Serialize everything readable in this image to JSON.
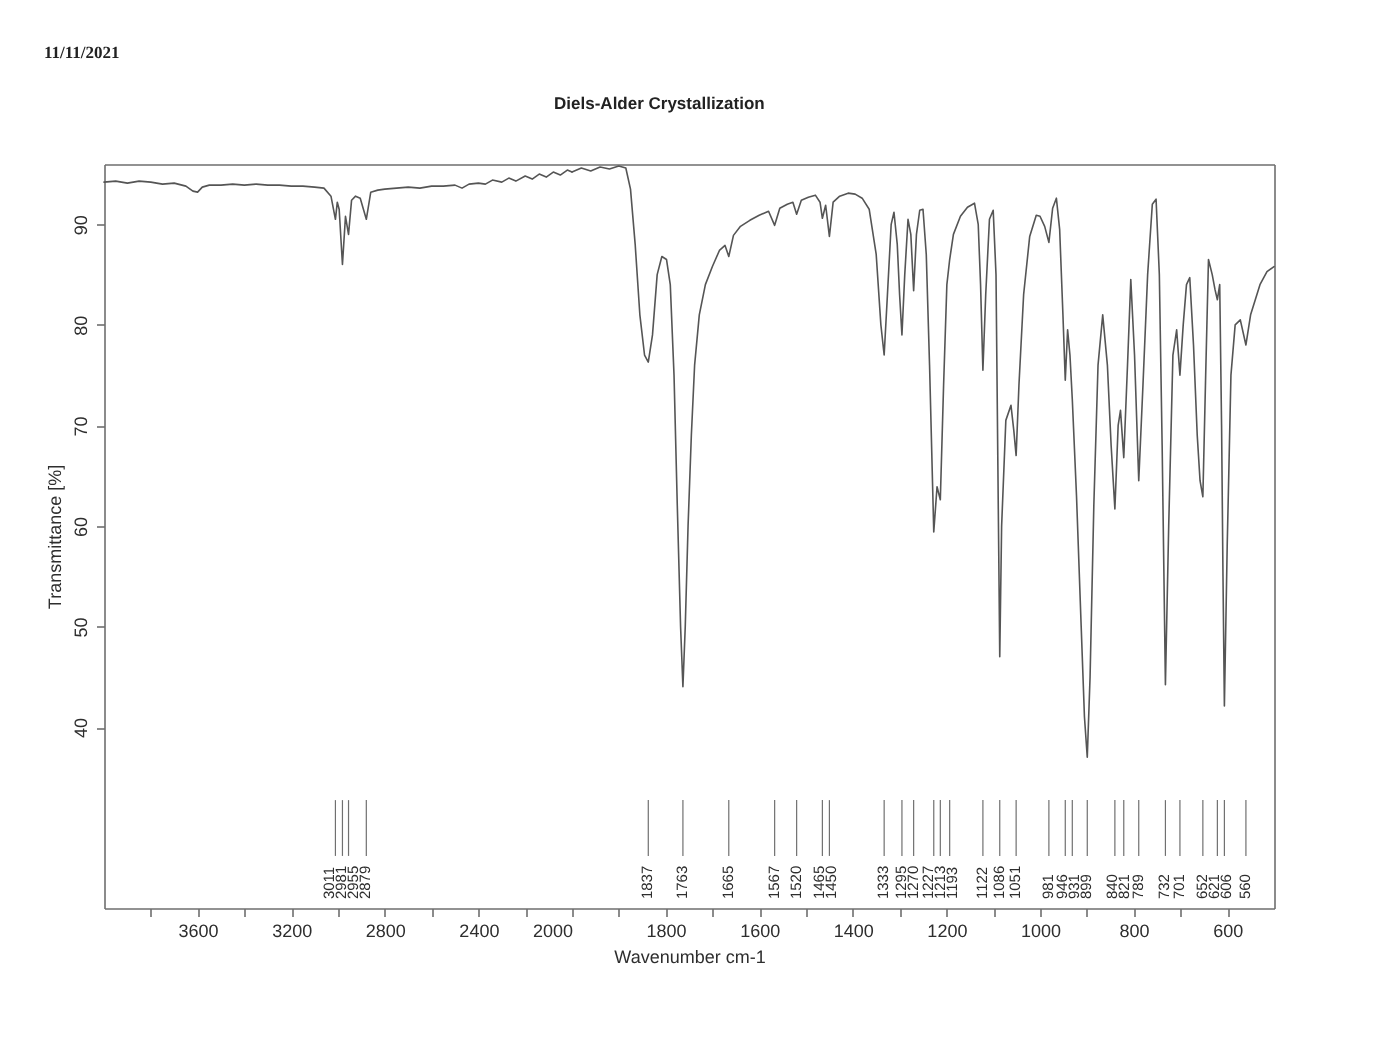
{
  "chart_data": [
    {
      "type": "line",
      "ylabel": "Transmittance [%]",
      "x": [
        4000,
        3950,
        3900,
        3850,
        3800,
        3750,
        3700,
        3650,
        3620,
        3600,
        3580,
        3550,
        3500,
        3450,
        3400,
        3350,
        3300,
        3250,
        3200,
        3150,
        3100,
        3060,
        3030,
        3011,
        3003,
        2995,
        2981,
        2968,
        2955,
        2942,
        2925,
        2905,
        2879,
        2860,
        2830,
        2800,
        2750,
        2700,
        2650,
        2600,
        2550,
        2500,
        2470,
        2440,
        2400,
        2370,
        2340,
        2300,
        2270,
        2240,
        2200,
        2170,
        2140,
        2110,
        2080,
        2050,
        2020,
        2000
      ],
      "series": [
        {
          "color": "#555555",
          "values": [
            94.2,
            94.3,
            94.1,
            94.3,
            94.2,
            94.0,
            94.1,
            93.8,
            93.3,
            93.2,
            93.7,
            93.9,
            93.9,
            94.0,
            93.9,
            94.0,
            93.9,
            93.9,
            93.8,
            93.8,
            93.7,
            93.6,
            92.8,
            90.5,
            92.2,
            91.5,
            86.0,
            90.8,
            89.0,
            92.4,
            92.8,
            92.6,
            90.5,
            93.2,
            93.4,
            93.5,
            93.6,
            93.7,
            93.6,
            93.8,
            93.8,
            93.9,
            93.6,
            94.0,
            94.1,
            94.0,
            94.4,
            94.2,
            94.6,
            94.3,
            94.8,
            94.5,
            95.0,
            94.7,
            95.2,
            94.9,
            95.4,
            95.2
          ]
        }
      ],
      "xlim": [
        4000,
        2000
      ],
      "xticks": [
        {
          "value": 3800,
          "label": null
        },
        3600,
        {
          "value": 3400,
          "label": null
        },
        3200,
        {
          "value": 3000,
          "label": null
        },
        2800,
        {
          "value": 2600,
          "label": null
        },
        2400,
        {
          "value": 2200,
          "label": null
        },
        2000
      ],
      "ylim": [
        22,
        96
      ],
      "yticks": [
        40,
        50,
        60,
        70,
        80,
        90
      ],
      "grid": false,
      "annotations": [
        "11/11/2021"
      ],
      "ref_lines": [
        {
          "axis": "x",
          "value": 3011,
          "label": "3011"
        },
        {
          "axis": "x",
          "value": 2981,
          "label": "2981"
        },
        {
          "axis": "x",
          "value": 2955,
          "label": "2955"
        },
        {
          "axis": "x",
          "value": 2879,
          "label": "2879"
        }
      ]
    },
    {
      "type": "line",
      "title": "Diels-Alder Crystallization",
      "xlabel": "Wavenumber cm-1",
      "x": [
        2000,
        1980,
        1960,
        1940,
        1920,
        1900,
        1885,
        1875,
        1865,
        1855,
        1845,
        1837,
        1828,
        1818,
        1808,
        1798,
        1790,
        1782,
        1775,
        1768,
        1763,
        1758,
        1752,
        1745,
        1738,
        1728,
        1715,
        1700,
        1685,
        1673,
        1665,
        1655,
        1640,
        1620,
        1600,
        1580,
        1567,
        1556,
        1540,
        1528,
        1520,
        1510,
        1495,
        1480,
        1470,
        1465,
        1458,
        1450,
        1442,
        1428,
        1410,
        1395,
        1380,
        1365,
        1350,
        1340,
        1333,
        1326,
        1318,
        1312,
        1305,
        1300,
        1295,
        1289,
        1282,
        1276,
        1270,
        1264,
        1257,
        1250,
        1243,
        1236,
        1227,
        1220,
        1213,
        1206,
        1199,
        1193,
        1185,
        1170,
        1155,
        1140,
        1132,
        1127,
        1122,
        1116,
        1108,
        1100,
        1094,
        1090,
        1086,
        1082,
        1073,
        1062,
        1056,
        1051,
        1045,
        1035,
        1022,
        1008,
        1000,
        990,
        981,
        973,
        965,
        958,
        951,
        946,
        941,
        936,
        931,
        922,
        912,
        905,
        899,
        893,
        885,
        876,
        866,
        856,
        848,
        840,
        833,
        828,
        821,
        813,
        806,
        798,
        789,
        780,
        770,
        760,
        752,
        745,
        739,
        732,
        725,
        716,
        708,
        701,
        694,
        687,
        680,
        672,
        664,
        658,
        652,
        646,
        640,
        632,
        626,
        621,
        616,
        612,
        609,
        606,
        600,
        592,
        583,
        572,
        560,
        550,
        530,
        515,
        500
      ],
      "series": [
        {
          "color": "#555555",
          "values": [
            95.2,
            95.6,
            95.3,
            95.7,
            95.5,
            95.8,
            95.6,
            93.5,
            88,
            81,
            77,
            76.3,
            79,
            85,
            86.8,
            86.5,
            84,
            75,
            62,
            50,
            44,
            50,
            60,
            69,
            76,
            81,
            84,
            85.8,
            87.4,
            87.9,
            86.8,
            88.9,
            89.8,
            90.4,
            90.9,
            91.3,
            89.9,
            91.6,
            92.0,
            92.2,
            91.0,
            92.4,
            92.7,
            92.9,
            92.2,
            90.6,
            91.9,
            88.8,
            92.2,
            92.8,
            93.1,
            93.0,
            92.6,
            91.5,
            87,
            80,
            77,
            83,
            90,
            91.2,
            88,
            83,
            79,
            85,
            90.5,
            89,
            83.4,
            89,
            91.4,
            91.5,
            87,
            76,
            59.4,
            63.9,
            62.6,
            74,
            84,
            86.5,
            89,
            90.8,
            91.7,
            92.1,
            90,
            84,
            75.5,
            83,
            90.5,
            91.4,
            85,
            66,
            47,
            60,
            70.5,
            72,
            69.5,
            67,
            74,
            83,
            88.8,
            90.9,
            90.8,
            89.8,
            88.2,
            91.6,
            92.6,
            89.5,
            81,
            74.5,
            79.5,
            77,
            72.6,
            63,
            50,
            41,
            37,
            45,
            62,
            76,
            81,
            76,
            68,
            61.7,
            70,
            71.5,
            66.8,
            76,
            84.5,
            77,
            64.5,
            74,
            85,
            92,
            92.5,
            85,
            68,
            44.2,
            60,
            77,
            79.5,
            75,
            80,
            84,
            84.7,
            78,
            69,
            64.5,
            62.9,
            75,
            86.5,
            85,
            83.5,
            82.5,
            84,
            70,
            55,
            42.1,
            58,
            75,
            80,
            80.5,
            78,
            81,
            84,
            85.3,
            85.8
          ]
        }
      ],
      "xlim": [
        2000,
        500
      ],
      "xticks": [
        {
          "value": 1900,
          "label": null
        },
        1800,
        {
          "value": 1700,
          "label": null
        },
        1600,
        {
          "value": 1500,
          "label": null
        },
        1400,
        {
          "value": 1300,
          "label": null
        },
        1200,
        {
          "value": 1100,
          "label": null
        },
        1000,
        {
          "value": 900,
          "label": null
        },
        800,
        {
          "value": 700,
          "label": null
        },
        600
      ],
      "ylim": [
        22,
        96
      ],
      "grid": false,
      "tick_labels": "x",
      "ref_lines": [
        {
          "axis": "x",
          "value": 1837,
          "label": "1837"
        },
        {
          "axis": "x",
          "value": 1763,
          "label": "1763"
        },
        {
          "axis": "x",
          "value": 1665,
          "label": "1665"
        },
        {
          "axis": "x",
          "value": 1567,
          "label": "1567"
        },
        {
          "axis": "x",
          "value": 1520,
          "label": "1520"
        },
        {
          "axis": "x",
          "value": 1465,
          "label": "1465"
        },
        {
          "axis": "x",
          "value": 1450,
          "label": "1450"
        },
        {
          "axis": "x",
          "value": 1333,
          "label": "1333"
        },
        {
          "axis": "x",
          "value": 1295,
          "label": "1295"
        },
        {
          "axis": "x",
          "value": 1270,
          "label": "1270"
        },
        {
          "axis": "x",
          "value": 1227,
          "label": "1227"
        },
        {
          "axis": "x",
          "value": 1213,
          "label": "1213"
        },
        {
          "axis": "x",
          "value": 1193,
          "label": "1193"
        },
        {
          "axis": "x",
          "value": 1122,
          "label": "1122"
        },
        {
          "axis": "x",
          "value": 1086,
          "label": "1086"
        },
        {
          "axis": "x",
          "value": 1051,
          "label": "1051"
        },
        {
          "axis": "x",
          "value": 981,
          "label": "981"
        },
        {
          "axis": "x",
          "value": 946,
          "label": "946"
        },
        {
          "axis": "x",
          "value": 931,
          "label": "931"
        },
        {
          "axis": "x",
          "value": 899,
          "label": "899"
        },
        {
          "axis": "x",
          "value": 840,
          "label": "840"
        },
        {
          "axis": "x",
          "value": 821,
          "label": "821"
        },
        {
          "axis": "x",
          "value": 789,
          "label": "789"
        },
        {
          "axis": "x",
          "value": 732,
          "label": "732"
        },
        {
          "axis": "x",
          "value": 701,
          "label": "701"
        },
        {
          "axis": "x",
          "value": 652,
          "label": "652"
        },
        {
          "axis": "x",
          "value": 621,
          "label": "621"
        },
        {
          "axis": "x",
          "value": 606,
          "label": "606"
        },
        {
          "axis": "x",
          "value": 560,
          "label": "560"
        }
      ]
    }
  ]
}
